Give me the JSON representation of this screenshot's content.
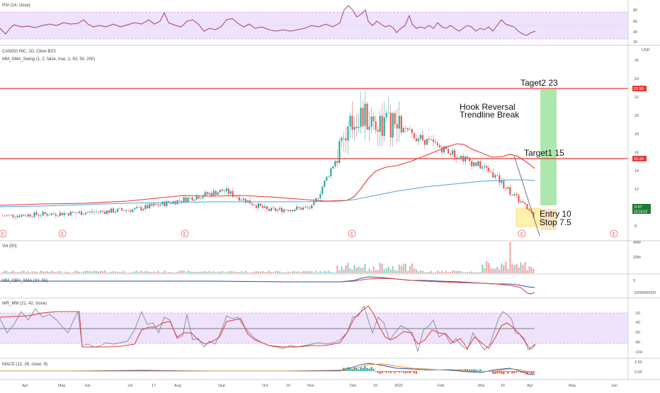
{
  "colors": {
    "up": "#26a69a",
    "down": "#ef5350",
    "sma50": "#e53935",
    "sma200": "#4fa3e0",
    "level_line": "#e53935",
    "band_fill": "#efe3fb",
    "band_line": "#b07de0",
    "rsi_line": "#9c3e8a",
    "target_box": "#9ee39e",
    "stop_box": "#fddfb8",
    "entry_box": "#fff2a8",
    "obv_line": "#2d4fa8",
    "obv_sma": "#e53935",
    "wr_fast": "#e53935",
    "wr_slow": "#7a8aa0",
    "macd_line": "#2d4fa8",
    "signal_line": "#f08c28",
    "level_label_bg": "#e53935",
    "price_label_bg": "#1f7a33"
  },
  "rsi": {
    "title": "RSI (14, close)",
    "ticks": [
      "80",
      "60",
      "40",
      "20"
    ]
  },
  "main": {
    "title": "CANOO INC, 1D, Cboe BZX",
    "indicator": "MM_SMA_Swing (1, 2, false, true, 1, 50, 50, 200)",
    "currency": "USD",
    "ticks": [
      "26",
      "24",
      "22",
      "20",
      "18",
      "16",
      "14",
      "12",
      "10",
      "8"
    ],
    "level_22": "22.80",
    "level_15": "15.24",
    "last_price": "9.57",
    "countdown": "24:16:52",
    "earnings_marker": "E"
  },
  "annotations": {
    "target2": "Taget2 23",
    "hook": "Hook Reversal",
    "trendline": "Trendline Break",
    "target1": "Target1 15",
    "entry": "Entry 10",
    "stop": "Stop 7.5"
  },
  "vol": {
    "title": "Vol (50)",
    "ticks": [
      "40M",
      "20M"
    ]
  },
  "obv": {
    "title": "MM_OBV_SMA (34, 55)",
    "ticks": [
      "0",
      "-1000000000"
    ]
  },
  "wr": {
    "title": "WR_MM (21, 42, close)",
    "ticks": [
      "-20",
      "-40",
      "-60",
      "-80",
      "-100"
    ]
  },
  "macd": {
    "title": "MACD (12, 26, close, 9)",
    "ticks": [
      "2.50",
      "0.00"
    ]
  },
  "x_axis": {
    "labels": [
      "Apr",
      "May",
      "Jun",
      "Jul",
      "17",
      "Aug",
      "Sep",
      "Oct",
      "16",
      "Nov",
      "Dec",
      "16",
      "2021",
      "Feb",
      "Mar",
      "16",
      "Apr",
      "May",
      "Jun"
    ]
  },
  "chart_data": {
    "type": "candlestick",
    "title": "CANOO INC, 1D, Cboe BZX",
    "y_range": [
      7,
      27
    ],
    "levels": [
      22.8,
      15.24
    ],
    "last_price": 9.57,
    "close_series": {
      "months": [
        "Apr",
        "May",
        "Jun",
        "Jul",
        "Aug",
        "Sep",
        "Oct",
        "Nov",
        "Dec",
        "2021",
        "Feb",
        "Mar",
        "Apr"
      ],
      "values": [
        9.5,
        9.7,
        9.9,
        10.2,
        11.2,
        12.3,
        10.1,
        10.4,
        20.5,
        19.0,
        16.8,
        14.5,
        9.6
      ]
    },
    "annotations": [
      "Taget2 23",
      "Hook Reversal",
      "Trendline Break",
      "Target1 15",
      "Entry 10",
      "Stop 7.5"
    ]
  }
}
